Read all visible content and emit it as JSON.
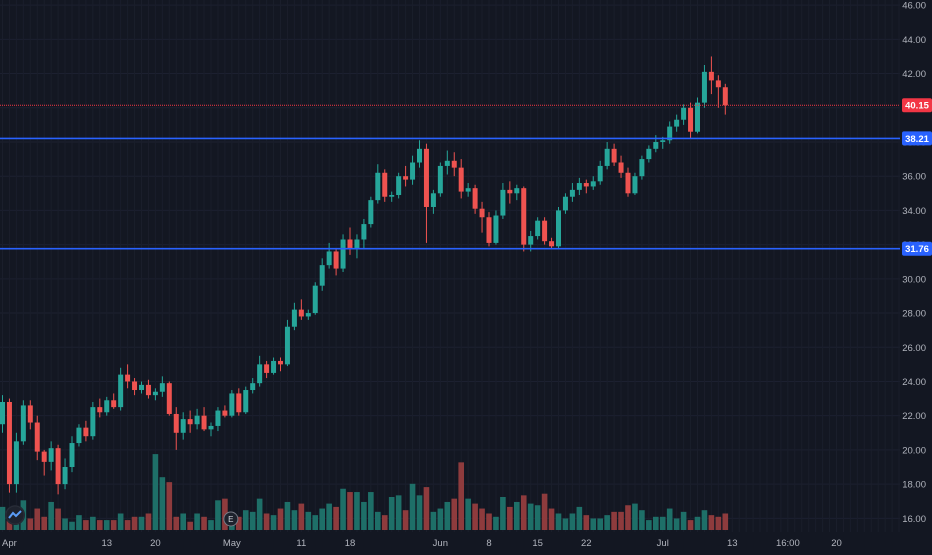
{
  "chart_data": {
    "type": "candlestick",
    "y_axis_ticks": [
      "46.00",
      "44.00",
      "42.00",
      "40.00",
      "38.00",
      "36.00",
      "34.00",
      "32.00",
      "30.00",
      "28.00",
      "26.00",
      "24.00",
      "22.00",
      "20.00",
      "18.00",
      "16.00"
    ],
    "y_axis_values": [
      46,
      44,
      42,
      40,
      38,
      36,
      34,
      32,
      30,
      28,
      26,
      24,
      22,
      20,
      18,
      16
    ],
    "x_axis_ticks": [
      {
        "label": "Apr",
        "index": 1
      },
      {
        "label": "13",
        "index": 15
      },
      {
        "label": "20",
        "index": 22
      },
      {
        "label": "May",
        "index": 33
      },
      {
        "label": "11",
        "index": 43
      },
      {
        "label": "18",
        "index": 50
      },
      {
        "label": "Jun",
        "index": 63
      },
      {
        "label": "8",
        "index": 70
      },
      {
        "label": "15",
        "index": 77
      },
      {
        "label": "22",
        "index": 84
      },
      {
        "label": "Jul",
        "index": 95
      },
      {
        "label": "13",
        "index": 105
      },
      {
        "label": "16:00",
        "index": 113
      },
      {
        "label": "20",
        "index": 120
      }
    ],
    "ylim": [
      15.2,
      46.3
    ],
    "price_line": {
      "value": 40.15,
      "label": "40.15",
      "color": "#f23645"
    },
    "horizontal_lines": [
      {
        "value": 38.21,
        "label": "38.21",
        "color": "#2962ff"
      },
      {
        "value": 31.76,
        "label": "31.76",
        "color": "#2962ff"
      }
    ],
    "earnings_marker": "E",
    "colors": {
      "up": "#26a69a",
      "down": "#ef5350",
      "background": "#131722",
      "grid": "#1c2030",
      "text": "#b2b5be"
    },
    "candles": [
      [
        21.5,
        23.2,
        21.0,
        22.8
      ],
      [
        22.8,
        23.0,
        17.5,
        18.0
      ],
      [
        18.0,
        21.0,
        17.5,
        20.5
      ],
      [
        20.5,
        22.9,
        20.3,
        22.6
      ],
      [
        22.6,
        22.9,
        21.2,
        21.6
      ],
      [
        21.6,
        22.0,
        19.4,
        19.9
      ],
      [
        19.9,
        20.0,
        18.5,
        19.3
      ],
      [
        19.3,
        20.5,
        18.8,
        20.1
      ],
      [
        20.1,
        20.3,
        17.4,
        18.0
      ],
      [
        18.0,
        19.5,
        17.7,
        19.0
      ],
      [
        19.0,
        20.8,
        18.7,
        20.4
      ],
      [
        20.4,
        21.5,
        20.2,
        21.3
      ],
      [
        21.3,
        21.7,
        20.5,
        20.8
      ],
      [
        20.8,
        22.8,
        20.6,
        22.5
      ],
      [
        22.5,
        23.0,
        21.9,
        22.2
      ],
      [
        22.2,
        23.1,
        22.0,
        22.9
      ],
      [
        22.9,
        23.3,
        22.4,
        22.5
      ],
      [
        22.5,
        24.8,
        22.3,
        24.4
      ],
      [
        24.4,
        25.0,
        23.6,
        24.0
      ],
      [
        24.0,
        24.2,
        23.2,
        23.5
      ],
      [
        23.5,
        24.0,
        23.3,
        23.8
      ],
      [
        23.8,
        24.1,
        23.0,
        23.2
      ],
      [
        23.2,
        23.6,
        22.9,
        23.4
      ],
      [
        23.4,
        24.3,
        23.1,
        23.9
      ],
      [
        23.9,
        24.0,
        22.0,
        22.1
      ],
      [
        22.1,
        22.5,
        20.0,
        21.0
      ],
      [
        21.0,
        22.2,
        20.6,
        21.8
      ],
      [
        21.8,
        22.3,
        21.0,
        21.5
      ],
      [
        21.5,
        22.4,
        21.2,
        22.0
      ],
      [
        22.0,
        22.5,
        21.1,
        21.2
      ],
      [
        21.2,
        21.6,
        20.8,
        21.4
      ],
      [
        21.4,
        22.5,
        21.1,
        22.3
      ],
      [
        22.3,
        22.6,
        21.9,
        22.0
      ],
      [
        22.0,
        23.5,
        21.9,
        23.3
      ],
      [
        23.3,
        23.6,
        22.0,
        22.2
      ],
      [
        22.2,
        23.7,
        22.1,
        23.5
      ],
      [
        23.5,
        24.2,
        23.3,
        23.9
      ],
      [
        23.9,
        25.5,
        23.7,
        25.0
      ],
      [
        25.0,
        25.2,
        24.2,
        24.5
      ],
      [
        24.5,
        25.4,
        24.4,
        25.2
      ],
      [
        25.2,
        25.4,
        24.6,
        25.0
      ],
      [
        25.0,
        27.6,
        24.9,
        27.2
      ],
      [
        27.2,
        28.6,
        27.0,
        28.2
      ],
      [
        28.2,
        28.8,
        27.6,
        27.8
      ],
      [
        27.8,
        28.2,
        27.6,
        28.0
      ],
      [
        28.0,
        29.8,
        27.9,
        29.6
      ],
      [
        29.6,
        31.2,
        29.3,
        30.8
      ],
      [
        30.8,
        32.1,
        30.6,
        31.6
      ],
      [
        31.6,
        31.8,
        30.2,
        30.6
      ],
      [
        30.6,
        32.6,
        30.4,
        32.3
      ],
      [
        32.3,
        33.0,
        31.4,
        31.8
      ],
      [
        31.8,
        32.6,
        31.2,
        32.3
      ],
      [
        32.3,
        33.5,
        31.8,
        33.2
      ],
      [
        33.2,
        34.8,
        33.0,
        34.6
      ],
      [
        34.6,
        36.7,
        34.4,
        36.2
      ],
      [
        36.2,
        36.4,
        34.5,
        34.8
      ],
      [
        34.8,
        35.1,
        34.5,
        34.9
      ],
      [
        34.9,
        36.2,
        34.7,
        36.0
      ],
      [
        36.0,
        36.6,
        35.4,
        35.8
      ],
      [
        35.8,
        37.2,
        35.5,
        36.8
      ],
      [
        36.8,
        38.1,
        36.5,
        37.6
      ],
      [
        37.6,
        37.9,
        32.1,
        34.2
      ],
      [
        34.2,
        35.2,
        33.8,
        35.0
      ],
      [
        35.0,
        36.8,
        34.8,
        36.6
      ],
      [
        36.6,
        37.5,
        36.1,
        36.9
      ],
      [
        36.9,
        37.4,
        36.0,
        36.5
      ],
      [
        36.5,
        37.0,
        34.7,
        35.1
      ],
      [
        35.1,
        35.6,
        34.8,
        35.3
      ],
      [
        35.3,
        35.5,
        33.8,
        34.1
      ],
      [
        34.1,
        34.5,
        32.7,
        33.6
      ],
      [
        33.6,
        33.9,
        31.9,
        32.1
      ],
      [
        32.1,
        34.0,
        32.0,
        33.7
      ],
      [
        33.7,
        35.6,
        33.5,
        35.2
      ],
      [
        35.2,
        35.7,
        34.4,
        35.0
      ],
      [
        35.0,
        35.5,
        34.6,
        35.3
      ],
      [
        35.3,
        35.4,
        31.6,
        32.0
      ],
      [
        32.0,
        32.8,
        31.6,
        32.5
      ],
      [
        32.5,
        33.6,
        32.3,
        33.4
      ],
      [
        33.4,
        33.6,
        32.0,
        32.2
      ],
      [
        32.2,
        32.4,
        31.8,
        31.9
      ],
      [
        31.9,
        34.2,
        31.8,
        34.0
      ],
      [
        34.0,
        35.0,
        33.8,
        34.8
      ],
      [
        34.8,
        35.6,
        34.5,
        35.2
      ],
      [
        35.2,
        35.9,
        34.9,
        35.6
      ],
      [
        35.6,
        35.8,
        35.0,
        35.4
      ],
      [
        35.4,
        36.0,
        35.2,
        35.7
      ],
      [
        35.7,
        36.9,
        35.5,
        36.6
      ],
      [
        36.6,
        38.0,
        36.4,
        37.6
      ],
      [
        37.6,
        37.9,
        36.6,
        36.8
      ],
      [
        36.8,
        37.2,
        35.9,
        36.2
      ],
      [
        36.2,
        36.5,
        34.8,
        35.0
      ],
      [
        35.0,
        36.2,
        34.9,
        36.0
      ],
      [
        36.0,
        37.2,
        35.8,
        37.0
      ],
      [
        37.0,
        37.8,
        36.8,
        37.6
      ],
      [
        37.6,
        38.4,
        37.4,
        38.0
      ],
      [
        38.0,
        38.3,
        37.6,
        38.1
      ],
      [
        38.1,
        39.2,
        37.9,
        38.9
      ],
      [
        38.9,
        39.6,
        38.6,
        39.3
      ],
      [
        39.3,
        40.2,
        39.0,
        40.0
      ],
      [
        40.0,
        40.3,
        38.2,
        38.6
      ],
      [
        38.6,
        40.6,
        38.5,
        40.3
      ],
      [
        40.3,
        42.5,
        40.0,
        42.1
      ],
      [
        42.1,
        43.0,
        40.8,
        41.6
      ],
      [
        41.6,
        41.9,
        40.0,
        41.2
      ],
      [
        41.2,
        41.4,
        39.6,
        40.15
      ]
    ],
    "volumes": [
      1.4,
      0.9,
      1.0,
      1.8,
      0.7,
      1.3,
      0.8,
      1.7,
      1.3,
      0.7,
      0.5,
      0.9,
      0.6,
      0.8,
      0.6,
      0.6,
      0.6,
      1.0,
      0.6,
      0.8,
      0.8,
      1.0,
      4.6,
      3.2,
      2.9,
      0.8,
      1.0,
      0.5,
      1.0,
      0.8,
      0.6,
      1.8,
      1.9,
      0.7,
      0.8,
      1.2,
      1.1,
      1.9,
      1.0,
      0.9,
      1.3,
      1.7,
      1.2,
      1.6,
      1.1,
      0.9,
      1.3,
      1.6,
      1.4,
      2.5,
      2.3,
      2.3,
      1.7,
      2.3,
      1.1,
      0.9,
      2.0,
      2.1,
      1.2,
      2.8,
      2.1,
      2.6,
      1.1,
      1.3,
      1.7,
      1.9,
      4.1,
      1.9,
      1.6,
      1.3,
      1.0,
      0.8,
      2.0,
      1.4,
      1.7,
      2.1,
      1.6,
      1.5,
      2.2,
      1.3,
      1.0,
      0.7,
      1.0,
      1.4,
      0.9,
      0.7,
      0.7,
      0.9,
      1.1,
      1.1,
      1.5,
      1.6,
      1.2,
      0.6,
      0.8,
      0.8,
      1.3,
      0.7,
      1.1,
      0.6,
      0.8,
      1.2,
      0.9,
      0.8,
      1.0
    ]
  }
}
